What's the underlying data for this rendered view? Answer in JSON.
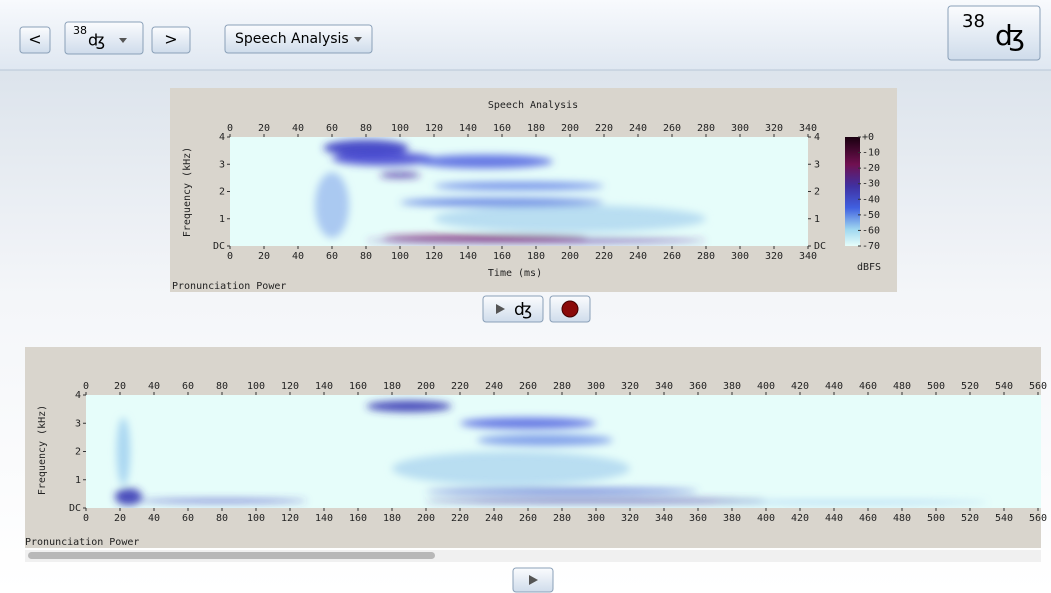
{
  "toolbar": {
    "prev": "<",
    "phoneme_number": "38",
    "phoneme": "ʤ",
    "next": ">",
    "mode": "Speech Analysis",
    "badge_number": "38",
    "badge_symbol": "ʤ"
  },
  "panel1": {
    "title": "Speech Analysis",
    "y_label": "Frequency (kHz)",
    "x_label": "Time (ms)",
    "xticks": [
      0,
      20,
      40,
      60,
      80,
      100,
      120,
      140,
      160,
      180,
      200,
      220,
      240,
      260,
      280,
      300,
      320,
      340
    ],
    "yticks": [
      {
        "value": 0,
        "label": "DC"
      },
      1,
      2,
      3,
      4
    ],
    "colorbar": {
      "ticks": [
        {
          "value": 0,
          "label": "+0"
        },
        -10,
        -20,
        -30,
        -40,
        -50,
        -60,
        -70
      ],
      "label": "dBFS"
    },
    "footer": "Pronunciation Power",
    "play_label": "ʤ"
  },
  "panel2": {
    "y_label": "Frequency (kHz)",
    "xticks": [
      0,
      20,
      40,
      60,
      80,
      100,
      120,
      140,
      160,
      180,
      200,
      220,
      240,
      260,
      280,
      300,
      320,
      340,
      360,
      380,
      400,
      420,
      440,
      460,
      480,
      500,
      520,
      540,
      560
    ],
    "yticks": [
      {
        "value": 0,
        "label": "DC"
      },
      1,
      2,
      3,
      4
    ],
    "footer": "Pronunciation Power"
  }
}
